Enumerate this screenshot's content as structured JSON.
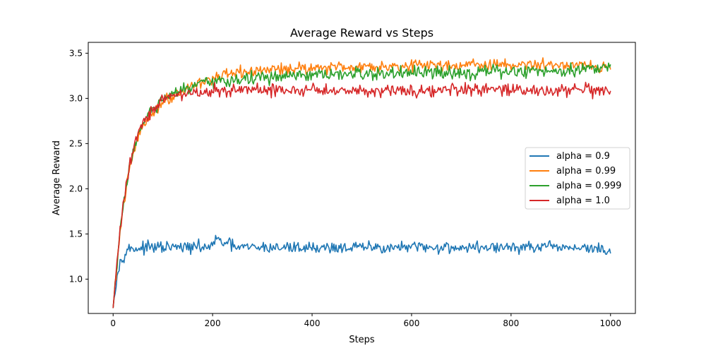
{
  "chart_data": {
    "type": "line",
    "title": "Average Reward vs Steps",
    "xlabel": "Steps",
    "ylabel": "Average Reward",
    "xlim": [
      -50,
      1050
    ],
    "ylim": [
      0.62,
      3.62
    ],
    "xticks": [
      0,
      200,
      400,
      600,
      800,
      1000
    ],
    "yticks": [
      1.0,
      1.5,
      2.0,
      2.5,
      3.0,
      3.5
    ],
    "xtick_labels": [
      "0",
      "200",
      "400",
      "600",
      "800",
      "1000"
    ],
    "ytick_labels": [
      "1.0",
      "1.5",
      "2.0",
      "2.5",
      "3.0",
      "3.5"
    ],
    "grid": false,
    "legend_position": "center-right",
    "series": [
      {
        "name": "alpha = 0.9",
        "color": "#1f77b4",
        "x": [
          0,
          5,
          10,
          15,
          20,
          25,
          30,
          40,
          50,
          75,
          100,
          150,
          200,
          205,
          250,
          300,
          350,
          400,
          450,
          500,
          550,
          600,
          650,
          700,
          750,
          800,
          850,
          900,
          950,
          1000
        ],
        "y": [
          0.68,
          0.95,
          1.1,
          1.2,
          1.26,
          1.3,
          1.33,
          1.34,
          1.34,
          1.35,
          1.35,
          1.35,
          1.36,
          1.44,
          1.35,
          1.35,
          1.35,
          1.35,
          1.35,
          1.35,
          1.35,
          1.35,
          1.35,
          1.35,
          1.35,
          1.35,
          1.35,
          1.35,
          1.35,
          1.3
        ],
        "noise": 0.04
      },
      {
        "name": "alpha = 0.99",
        "color": "#ff7f0e",
        "x": [
          0,
          10,
          20,
          30,
          40,
          50,
          60,
          75,
          100,
          125,
          150,
          175,
          200,
          250,
          300,
          350,
          400,
          450,
          500,
          550,
          600,
          650,
          700,
          750,
          800,
          850,
          900,
          950,
          1000
        ],
        "y": [
          0.68,
          1.3,
          1.78,
          2.12,
          2.38,
          2.56,
          2.69,
          2.82,
          2.96,
          3.05,
          3.12,
          3.18,
          3.22,
          3.28,
          3.31,
          3.33,
          3.34,
          3.35,
          3.35,
          3.36,
          3.36,
          3.37,
          3.37,
          3.37,
          3.37,
          3.37,
          3.37,
          3.38,
          3.32
        ],
        "noise": 0.04
      },
      {
        "name": "alpha = 0.999",
        "color": "#2ca02c",
        "x": [
          0,
          10,
          20,
          30,
          40,
          50,
          60,
          75,
          100,
          125,
          150,
          175,
          200,
          250,
          300,
          350,
          400,
          450,
          500,
          550,
          600,
          650,
          700,
          750,
          800,
          850,
          900,
          950,
          1000
        ],
        "y": [
          0.68,
          1.3,
          1.8,
          2.16,
          2.42,
          2.6,
          2.72,
          2.85,
          2.98,
          3.06,
          3.11,
          3.15,
          3.18,
          3.21,
          3.23,
          3.24,
          3.25,
          3.26,
          3.27,
          3.27,
          3.28,
          3.28,
          3.29,
          3.29,
          3.3,
          3.3,
          3.31,
          3.33,
          3.36
        ],
        "noise": 0.045
      },
      {
        "name": "alpha = 1.0",
        "color": "#d62728",
        "x": [
          0,
          10,
          20,
          30,
          40,
          50,
          60,
          75,
          100,
          125,
          150,
          200,
          250,
          300,
          350,
          400,
          450,
          500,
          550,
          600,
          650,
          700,
          750,
          800,
          850,
          900,
          950,
          1000
        ],
        "y": [
          0.68,
          1.32,
          1.82,
          2.18,
          2.44,
          2.62,
          2.74,
          2.86,
          2.98,
          3.03,
          3.06,
          3.08,
          3.09,
          3.09,
          3.09,
          3.09,
          3.09,
          3.09,
          3.09,
          3.09,
          3.09,
          3.09,
          3.09,
          3.09,
          3.09,
          3.09,
          3.09,
          3.05
        ],
        "noise": 0.045
      }
    ]
  }
}
